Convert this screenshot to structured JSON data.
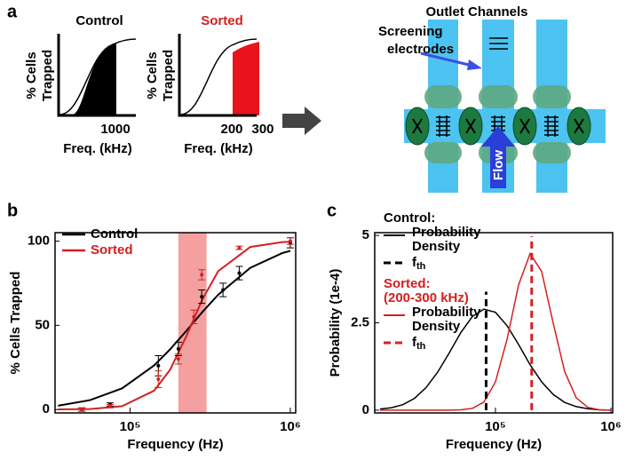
{
  "diagram": {
    "label": "a",
    "control_title": "Control",
    "sorted_title": "Sorted",
    "ylabel": [
      "% Cells",
      "Trapped"
    ],
    "xlabel": "Freq. (kHz)",
    "control_ticks": [
      "1000"
    ],
    "sorted_ticks": [
      "200",
      "300"
    ],
    "outlet_title": "Outlet Channels",
    "electrodes_label": [
      "Screening",
      "electrodes"
    ],
    "flow_label": "Flow"
  },
  "chart_data": [
    {
      "type": "scatter",
      "panel_label": "b",
      "xlabel": "Frequency (Hz)",
      "ylabel": "% Cells Trapped",
      "xscale": "log",
      "xlim": [
        34000,
        1080000
      ],
      "ylim": [
        -2,
        105
      ],
      "xticks": [
        {
          "value": 100000,
          "label": "10⁵"
        },
        {
          "value": 1000000,
          "label": "10⁶"
        }
      ],
      "yticks": [
        0,
        50,
        100
      ],
      "highlight_range": [
        200000,
        300000
      ],
      "highlight_color": "#f4a0a0",
      "legend": "upper left",
      "series": [
        {
          "name": "Control",
          "color": "#000000",
          "x": [
            50000,
            75000,
            150000,
            200000,
            280000,
            380000,
            480000,
            1000000
          ],
          "values": [
            0,
            3,
            26,
            36,
            67,
            71,
            81,
            99
          ],
          "errors": [
            1,
            1,
            6,
            4,
            4,
            4,
            4,
            3
          ],
          "fit_x": [
            35481,
            56234,
            89125,
            141254,
            177828,
            223872,
            281838,
            354813,
            562341,
            891251,
            1000000
          ],
          "fit_values": [
            2.3,
            5.6,
            12.6,
            26.2,
            35.8,
            46.6,
            57.8,
            68.2,
            84.1,
            92.9,
            94.2
          ]
        },
        {
          "name": "Sorted",
          "color": "#d42020",
          "x": [
            50000,
            75000,
            150000,
            200000,
            250000,
            280000,
            480000,
            1000000
          ],
          "values": [
            0,
            2,
            18,
            30,
            55,
            80,
            96,
            100
          ],
          "errors": [
            1,
            1,
            5,
            3,
            4,
            3,
            1,
            2
          ],
          "fit_x": [
            35481,
            56234,
            89125,
            141254,
            177828,
            223872,
            281838,
            354813,
            562341,
            891251,
            1000000
          ],
          "fit_values": [
            0.1,
            0.3,
            2.0,
            11.2,
            23.7,
            43.3,
            65.2,
            82.2,
            96.5,
            99.4,
            99.6
          ]
        }
      ]
    },
    {
      "type": "line",
      "panel_label": "c",
      "xlabel": "Frequency (Hz)",
      "ylabel": "Probability (1e-4)",
      "xscale": "log",
      "xlim": [
        9000,
        1036000
      ],
      "ylim": [
        -0.08,
        5.08
      ],
      "xticks": [
        {
          "value": 100000,
          "label": "10⁵"
        },
        {
          "value": 1000000,
          "label": "10⁶"
        }
      ],
      "yticks": [
        0,
        2.5,
        5
      ],
      "groups": [
        {
          "title": [
            "Control:"
          ],
          "color": "#000000"
        },
        {
          "title": [
            "Sorted:",
            "(200-300 kHz)"
          ],
          "color": "#d42020"
        }
      ],
      "series": [
        {
          "name": [
            "Probability",
            "Density"
          ],
          "group": 0,
          "color": "#000000",
          "x": [
            10000,
            12589,
            15849,
            19953,
            25119,
            31623,
            39811,
            50119,
            63096,
            79433,
            100000,
            125893,
            158489,
            199526,
            251189,
            316228,
            398107,
            501187,
            630957,
            794328,
            1000000
          ],
          "values": [
            0.03,
            0.07,
            0.16,
            0.34,
            0.65,
            1.09,
            1.64,
            2.22,
            2.68,
            2.89,
            2.8,
            2.42,
            1.88,
            1.3,
            0.81,
            0.45,
            0.22,
            0.1,
            0.04,
            0.01,
            0
          ]
        },
        {
          "name": [
            "Probability",
            "Density"
          ],
          "group": 1,
          "color": "#d42020",
          "x": [
            10000,
            12589,
            15849,
            19953,
            25119,
            31623,
            39811,
            50119,
            63096,
            79433,
            100000,
            125893,
            158489,
            199526,
            251189,
            316228,
            398107,
            501187,
            630957,
            794328,
            1000000
          ],
          "values": [
            0,
            0,
            0,
            0,
            0,
            0,
            0,
            0.01,
            0.05,
            0.23,
            0.81,
            2.02,
            3.58,
            4.48,
            3.97,
            2.49,
            1.1,
            0.35,
            0.08,
            0.01,
            0
          ]
        }
      ],
      "thresholds": [
        {
          "name": "f",
          "subscript": "th",
          "group": 0,
          "color": "#000000",
          "value": 83000
        },
        {
          "name": "f",
          "subscript": "th",
          "group": 1,
          "color": "#d42020",
          "value": 206000
        }
      ]
    }
  ]
}
